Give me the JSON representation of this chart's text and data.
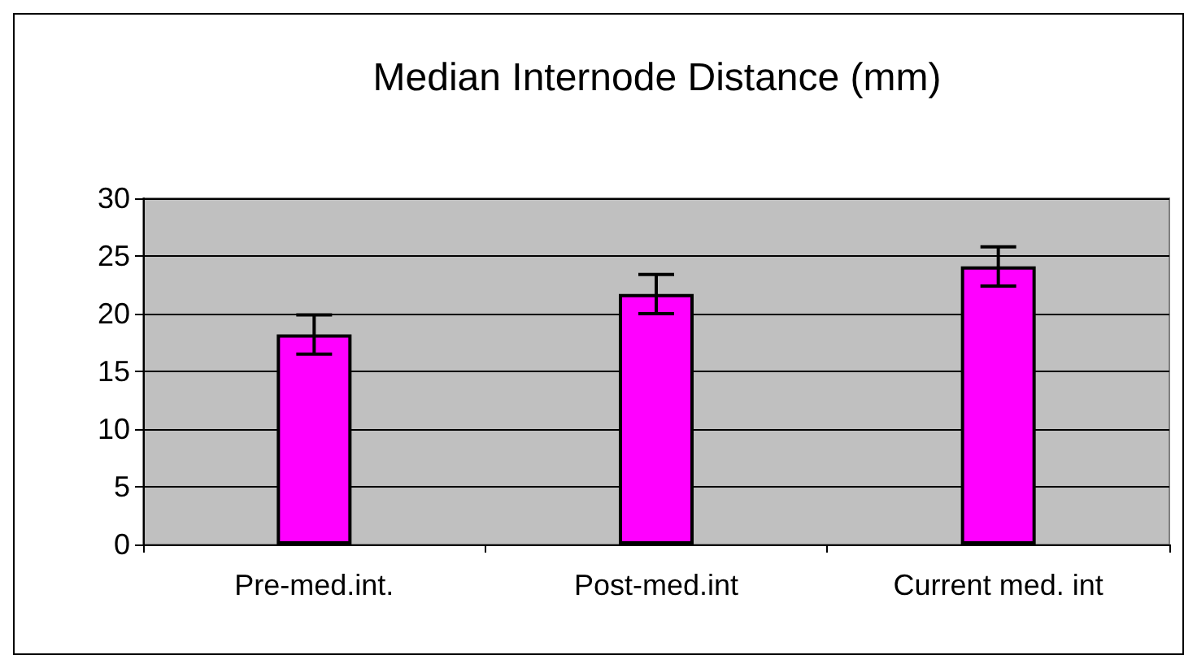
{
  "chart_data": {
    "type": "bar",
    "title": "Median Internode Distance (mm)",
    "categories": [
      "Pre-med.int.",
      "Post-med.int",
      "Current med. int"
    ],
    "values": [
      18.2,
      21.7,
      24.1
    ],
    "errors": [
      1.7,
      1.7,
      1.7
    ],
    "color": "#ff00ff",
    "ylim": [
      0,
      30
    ],
    "yticks": [
      0,
      5,
      10,
      15,
      20,
      25,
      30
    ],
    "grid": "y"
  }
}
